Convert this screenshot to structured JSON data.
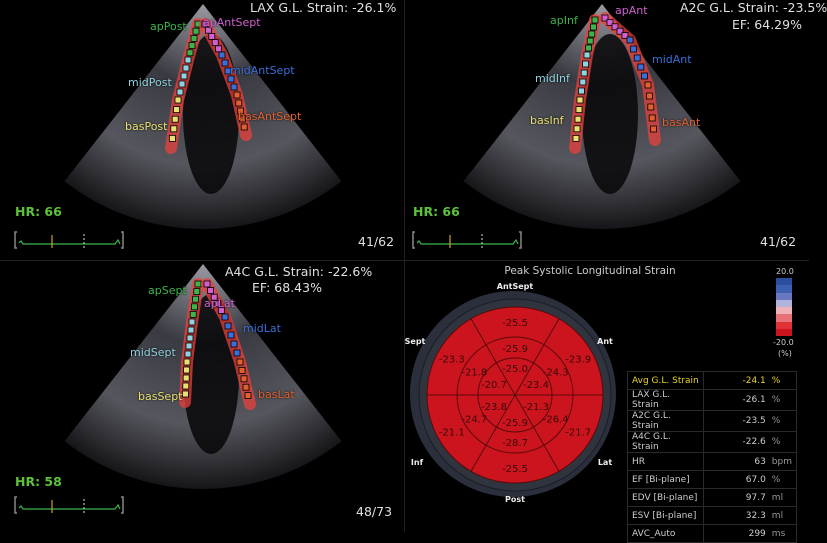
{
  "views": [
    {
      "id": "lax",
      "title": "LAX G.L. Strain: -26.1%",
      "ef": "",
      "hr": "HR: 66",
      "frame": "41/62",
      "segments": [
        {
          "name": "apPost",
          "color": "#3cb44b"
        },
        {
          "name": "apAntSept",
          "color": "#d060d0"
        },
        {
          "name": "midPost",
          "color": "#8fd3e0"
        },
        {
          "name": "midAntSept",
          "color": "#3a6fd8"
        },
        {
          "name": "basPost",
          "color": "#e8e070"
        },
        {
          "name": "basAntSept",
          "color": "#e06030"
        }
      ]
    },
    {
      "id": "a2c",
      "title": "A2C G.L. Strain: -23.5%",
      "ef": "EF: 64.29%",
      "hr": "HR: 66",
      "frame": "41/62",
      "segments": [
        {
          "name": "apInf",
          "color": "#3cb44b"
        },
        {
          "name": "apAnt",
          "color": "#d060d0"
        },
        {
          "name": "midInf",
          "color": "#8fd3e0"
        },
        {
          "name": "midAnt",
          "color": "#3a6fd8"
        },
        {
          "name": "basInf",
          "color": "#e8e070"
        },
        {
          "name": "basAnt",
          "color": "#e06030"
        }
      ]
    },
    {
      "id": "a4c",
      "title": "A4C G.L. Strain: -22.6%",
      "ef": "EF: 68.43%",
      "hr": "HR: 58",
      "frame": "48/73",
      "segments": [
        {
          "name": "apSept",
          "color": "#3cb44b"
        },
        {
          "name": "apLat",
          "color": "#d060d0"
        },
        {
          "name": "midSept",
          "color": "#8fd3e0"
        },
        {
          "name": "midLat",
          "color": "#3a6fd8"
        },
        {
          "name": "basSept",
          "color": "#e8e070"
        },
        {
          "name": "basLat",
          "color": "#e06030"
        }
      ]
    }
  ],
  "bullseye": {
    "title": "Peak Systolic Longitudinal Strain",
    "fill_color": "#cc141e",
    "wall_labels": {
      "top": "AntSept",
      "upper_right": "Ant",
      "lower_right": "Lat",
      "bottom": "Post",
      "lower_left": "Inf",
      "upper_left": "Sept"
    },
    "basal": [
      "-25.5",
      "-23.9",
      "-21.7",
      "-25.5",
      "-21.1",
      "-23.3"
    ],
    "mid": [
      "-25.9",
      "-24.3",
      "-26.4",
      "-28.7",
      "-24.7",
      "-21.8"
    ],
    "apical": [
      "-25.0",
      "-23.4",
      "-21.3",
      "-25.9",
      "-23.8",
      "-20.7"
    ],
    "colorbar": {
      "max": "20.0",
      "min": "-20.0",
      "unit": "(%)",
      "colors": [
        "#2a4fa0",
        "#3d5fb0",
        "#6a78c0",
        "#b0b4dc",
        "#f0b0b8",
        "#e87078",
        "#e03038",
        "#cc141e"
      ]
    }
  },
  "summary": [
    {
      "label": "Avg G.L. Strain",
      "value": "-24.1",
      "unit": "%",
      "highlight": true
    },
    {
      "label": "LAX G.L. Strain",
      "value": "-26.1",
      "unit": "%"
    },
    {
      "label": "A2C G.L. Strain",
      "value": "-23.5",
      "unit": "%"
    },
    {
      "label": "A4C G.L. Strain",
      "value": "-22.6",
      "unit": "%"
    },
    {
      "label": "HR",
      "value": "63",
      "unit": "bpm"
    },
    {
      "label": "EF [Bi-plane]",
      "value": "67.0",
      "unit": "%"
    },
    {
      "label": "EDV [Bi-plane]",
      "value": "97.7",
      "unit": "ml"
    },
    {
      "label": "ESV [Bi-plane]",
      "value": "32.3",
      "unit": "ml"
    },
    {
      "label": "AVC_Auto",
      "value": "299",
      "unit": "ms"
    }
  ]
}
